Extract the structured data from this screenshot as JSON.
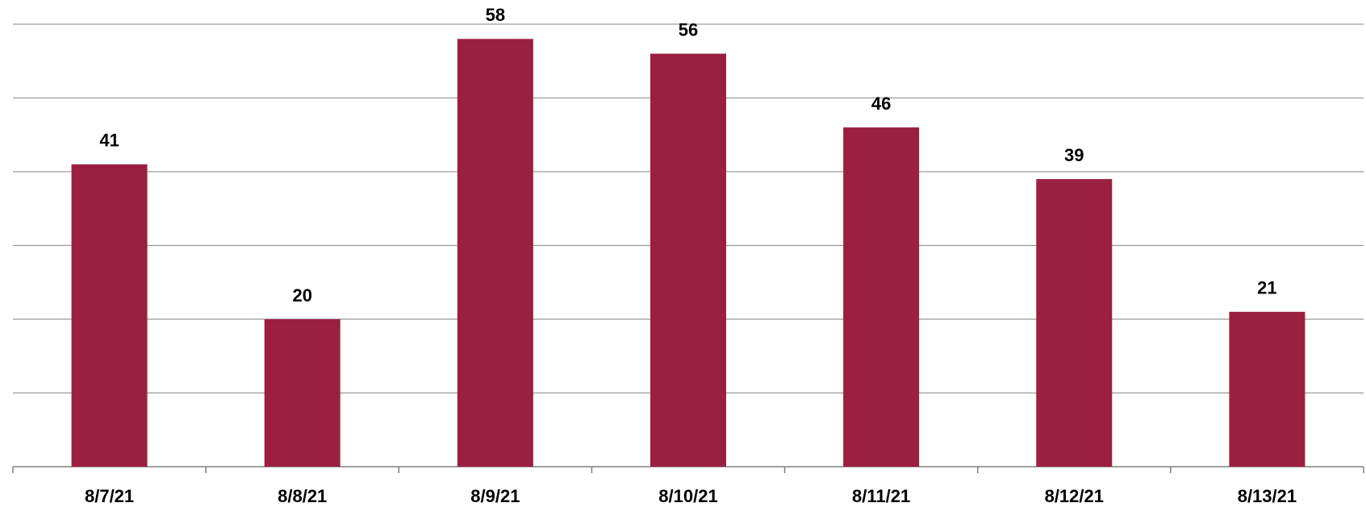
{
  "chart_data": {
    "type": "bar",
    "categories": [
      "8/7/21",
      "8/8/21",
      "8/9/21",
      "8/10/21",
      "8/11/21",
      "8/12/21",
      "8/13/21"
    ],
    "values": [
      41,
      20,
      58,
      56,
      46,
      39,
      21
    ],
    "color": "#9b1f40",
    "ylim": [
      0,
      60
    ],
    "yticks": [
      0,
      10,
      20,
      30,
      40,
      50,
      60
    ],
    "grid": true
  }
}
